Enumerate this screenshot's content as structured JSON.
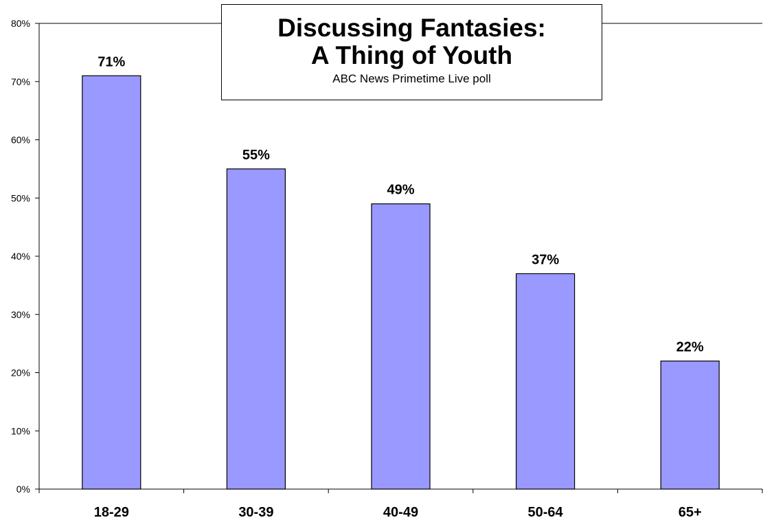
{
  "chart_data": {
    "type": "bar",
    "title": [
      "Discussing Fantasies:",
      "A Thing of Youth"
    ],
    "subtitle": "ABC News Primetime Live poll",
    "categories": [
      "18-29",
      "30-39",
      "40-49",
      "50-64",
      "65+"
    ],
    "values": [
      71,
      55,
      49,
      37,
      22
    ],
    "data_labels": [
      "71%",
      "55%",
      "49%",
      "37%",
      "22%"
    ],
    "yticks": [
      "0%",
      "10%",
      "20%",
      "30%",
      "40%",
      "50%",
      "60%",
      "70%",
      "80%"
    ],
    "ylim": [
      0,
      80
    ],
    "xlabel": "",
    "ylabel": "",
    "grid": false,
    "legend": false,
    "colors": {
      "bar_fill": "#9999ff",
      "bar_stroke": "#000000",
      "axis": "#000000",
      "text": "#000000"
    }
  }
}
